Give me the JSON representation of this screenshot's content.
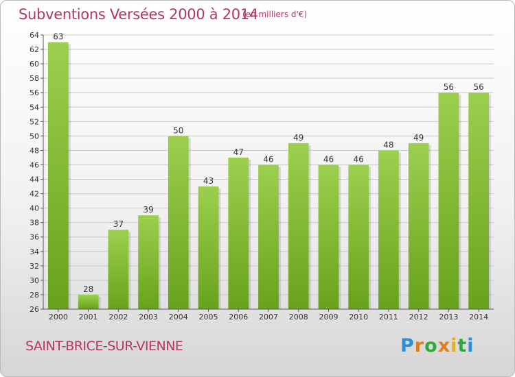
{
  "header": {
    "title": "Subventions Versées 2000 à 2014",
    "subtitle": "(en milliers d'€)"
  },
  "footer": {
    "place": "SAINT-BRICE-SUR-VIENNE",
    "logo": "Proxiti"
  },
  "colors": {
    "title": "#b5365d",
    "bar_top": "#9ccf4e",
    "bar_bottom": "#68a21c",
    "grid": "#c8c8c8"
  },
  "chart_data": {
    "type": "bar",
    "title": "Subventions Versées 2000 à 2014",
    "subtitle": "(en milliers d'€)",
    "xlabel": "",
    "ylabel": "",
    "categories": [
      "2000",
      "2001",
      "2002",
      "2003",
      "2004",
      "2005",
      "2006",
      "2007",
      "2008",
      "2009",
      "2010",
      "2011",
      "2012",
      "2013",
      "2014"
    ],
    "values": [
      63,
      28,
      37,
      39,
      50,
      43,
      47,
      46,
      49,
      46,
      46,
      48,
      49,
      56,
      56
    ],
    "ylim": [
      26,
      64
    ],
    "ytick_step": 2,
    "grid": true,
    "legend": "none"
  }
}
